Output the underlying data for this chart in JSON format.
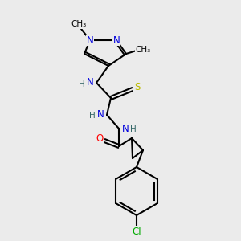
{
  "background_color": "#ebebeb",
  "bond_color": "#000000",
  "atom_colors": {
    "N": "#0000dd",
    "O": "#ff0000",
    "S": "#bbbb00",
    "Cl": "#00aa00",
    "C": "#000000",
    "H": "#336666"
  },
  "figsize": [
    3.0,
    3.0
  ],
  "dpi": 100
}
